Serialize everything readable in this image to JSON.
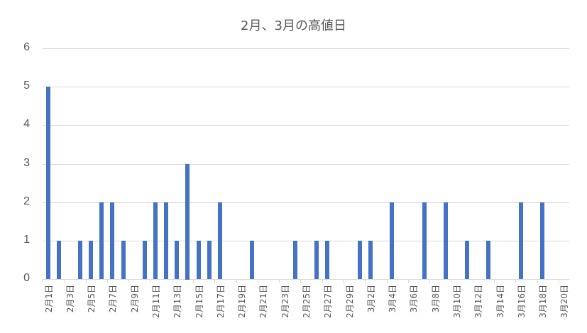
{
  "chart_data": {
    "type": "bar",
    "title": "2月、3月の高値日",
    "xlabel": "",
    "ylabel": "",
    "ylim": [
      0,
      6
    ],
    "yticks": [
      0,
      1,
      2,
      3,
      4,
      5,
      6
    ],
    "grid": true,
    "legend": "none",
    "bar_color": "#4472c4",
    "categories": [
      "2月1日",
      "2月2日",
      "2月3日",
      "2月4日",
      "2月5日",
      "2月6日",
      "2月7日",
      "2月8日",
      "2月9日",
      "2月10日",
      "2月11日",
      "2月12日",
      "2月13日",
      "2月14日",
      "2月15日",
      "2月16日",
      "2月17日",
      "2月18日",
      "2月19日",
      "2月20日",
      "2月21日",
      "2月22日",
      "2月23日",
      "2月24日",
      "2月25日",
      "2月26日",
      "2月27日",
      "2月28日",
      "2月29日",
      "3月1日",
      "3月2日",
      "3月3日",
      "3月4日",
      "3月5日",
      "3月6日",
      "3月7日",
      "3月8日",
      "3月9日",
      "3月10日",
      "3月11日",
      "3月12日",
      "3月13日",
      "3月14日",
      "3月15日",
      "3月16日",
      "3月17日",
      "3月18日",
      "3月19日",
      "3月20日"
    ],
    "values": [
      5,
      1,
      0,
      1,
      1,
      2,
      2,
      1,
      0,
      1,
      2,
      2,
      1,
      3,
      1,
      1,
      2,
      0,
      0,
      1,
      0,
      0,
      0,
      1,
      0,
      1,
      1,
      0,
      0,
      1,
      1,
      0,
      2,
      0,
      0,
      2,
      0,
      2,
      0,
      1,
      0,
      1,
      0,
      0,
      2,
      0,
      2,
      0,
      0
    ],
    "visible_xlabels": [
      "2月1日",
      "2月3日",
      "2月5日",
      "2月7日",
      "2月9日",
      "2月11日",
      "2月13日",
      "2月15日",
      "2月17日",
      "2月19日",
      "2月21日",
      "2月23日",
      "2月25日",
      "2月27日",
      "2月29日",
      "3月2日",
      "3月4日",
      "3月6日",
      "3月8日",
      "3月10日",
      "3月12日",
      "3月14日",
      "3月16日",
      "3月18日",
      "3月20日"
    ]
  }
}
